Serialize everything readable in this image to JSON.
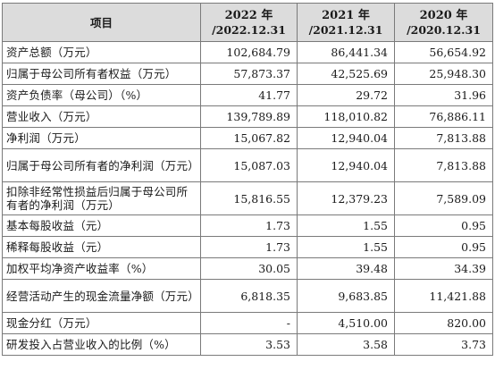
{
  "table": {
    "headers": {
      "item": "项目",
      "y2022": {
        "year": "2022 年",
        "date": "/2022.12.31"
      },
      "y2021": {
        "year": "2021 年",
        "date": "/2021.12.31"
      },
      "y2020": {
        "year": "2020 年",
        "date": "/2020.12.31"
      }
    },
    "rows": [
      {
        "label": "资产总额（万元）",
        "v2022": "102,684.79",
        "v2021": "86,441.34",
        "v2020": "56,654.92"
      },
      {
        "label": "归属于母公司所有者权益（万元）",
        "v2022": "57,873.37",
        "v2021": "42,525.69",
        "v2020": "25,948.30"
      },
      {
        "label": "资产负债率（母公司）（%）",
        "v2022": "41.77",
        "v2021": "29.72",
        "v2020": "31.96"
      },
      {
        "label": "营业收入（万元）",
        "v2022": "139,789.89",
        "v2021": "118,010.82",
        "v2020": "76,886.11"
      },
      {
        "label": "净利润（万元）",
        "v2022": "15,067.82",
        "v2021": "12,940.04",
        "v2020": "7,813.88"
      },
      {
        "label": "归属于母公司所有者的净利润（万元）",
        "v2022": "15,087.03",
        "v2021": "12,940.04",
        "v2020": "7,813.88"
      },
      {
        "label": "扣除非经常性损益后归属于母公司所有者的净利润（万元）",
        "v2022": "15,816.55",
        "v2021": "12,379.23",
        "v2020": "7,589.09"
      },
      {
        "label": "基本每股收益（元）",
        "v2022": "1.73",
        "v2021": "1.55",
        "v2020": "0.95"
      },
      {
        "label": "稀释每股收益（元）",
        "v2022": "1.73",
        "v2021": "1.55",
        "v2020": "0.95"
      },
      {
        "label": "加权平均净资产收益率（%）",
        "v2022": "30.05",
        "v2021": "39.48",
        "v2020": "34.39"
      },
      {
        "label": "经营活动产生的现金流量净额（万元）",
        "v2022": "6,818.35",
        "v2021": "9,683.85",
        "v2020": "11,421.88"
      },
      {
        "label": "现金分红（万元）",
        "v2022": "-",
        "v2021": "4,510.00",
        "v2020": "820.00"
      },
      {
        "label": "研发投入占营业收入的比例（%）",
        "v2022": "3.53",
        "v2021": "3.58",
        "v2020": "3.73"
      }
    ]
  }
}
